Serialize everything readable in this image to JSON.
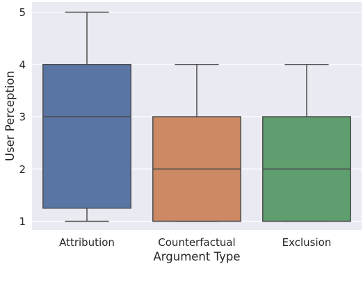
{
  "chart_data": {
    "type": "box",
    "title": "",
    "xlabel": "Argument Type",
    "ylabel": "User Perception",
    "ylim": [
      0.8,
      5.2
    ],
    "yticks": [
      1,
      2,
      3,
      4,
      5
    ],
    "grid": true,
    "categories": [
      "Attribution",
      "Counterfactual",
      "Exclusion"
    ],
    "boxes": [
      {
        "category": "Attribution",
        "whislo": 1,
        "q1": 1.25,
        "median": 3,
        "q3": 4,
        "whishi": 5,
        "color": "#5975a4"
      },
      {
        "category": "Counterfactual",
        "whislo": 1,
        "q1": 1,
        "median": 2,
        "q3": 3,
        "whishi": 4,
        "color": "#cc8963"
      },
      {
        "category": "Exclusion",
        "whislo": 1,
        "q1": 1,
        "median": 2,
        "q3": 3,
        "whishi": 4,
        "color": "#5f9e6e"
      }
    ],
    "colors": {
      "background": "#eaeaf2",
      "grid": "#ffffff",
      "line": "#4d4d4d"
    }
  }
}
